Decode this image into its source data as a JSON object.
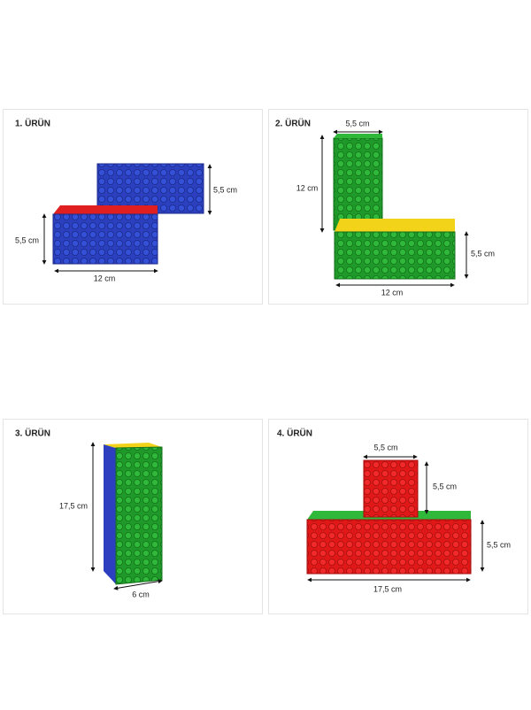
{
  "panels": [
    {
      "title": "1. ÜRÜN",
      "labels": [
        "5,5 cm",
        "5,5 cm",
        "12 cm"
      ]
    },
    {
      "title": "2. ÜRÜN",
      "labels": [
        "5,5 cm",
        "12 cm",
        "5,5 cm",
        "12 cm"
      ]
    },
    {
      "title": "3. ÜRÜN",
      "labels": [
        "17,5 cm",
        "6 cm"
      ]
    },
    {
      "title": "4. ÜRÜN",
      "labels": [
        "5,5 cm",
        "5,5 cm",
        "5,5 cm",
        "17,5 cm"
      ]
    }
  ]
}
